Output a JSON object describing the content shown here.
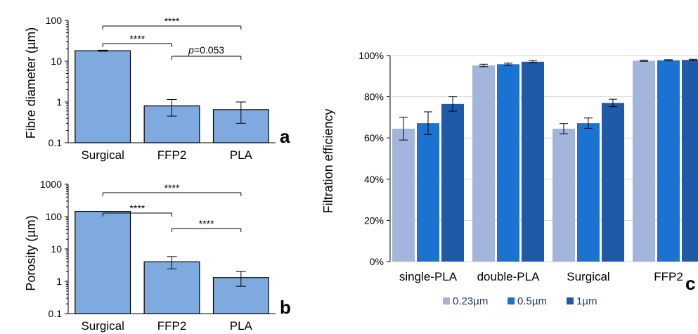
{
  "chart_data": [
    {
      "type": "bar",
      "panel_label": "a",
      "ylabel": "Fibre diameter (µm)",
      "yscale": "log",
      "ylim": [
        0.1,
        100
      ],
      "yticks": [
        "0.1",
        "1",
        "10",
        "100"
      ],
      "categories": [
        "Surgical",
        "FFP2",
        "PLA"
      ],
      "values": [
        18,
        0.8,
        0.65
      ],
      "errors_low": [
        0.5,
        0.35,
        0.35
      ],
      "errors_high": [
        0.6,
        0.35,
        0.35
      ],
      "bar_color": "#7eaadf",
      "significance": [
        {
          "from": 0,
          "to": 2,
          "label": "****"
        },
        {
          "from": 0,
          "to": 1,
          "label": "****"
        },
        {
          "from": 1,
          "to": 2,
          "label": "p=0.053",
          "italic_prefix": "p",
          "rest": "=0.053"
        }
      ]
    },
    {
      "type": "bar",
      "panel_label": "b",
      "ylabel": "Porosity (µm)",
      "yscale": "log",
      "ylim": [
        0.1,
        1000
      ],
      "yticks": [
        "0.1",
        "1",
        "10",
        "100",
        "1000"
      ],
      "categories": [
        "Surgical",
        "FFP2",
        "PLA"
      ],
      "values": [
        145,
        4,
        1.3
      ],
      "errors_low": [
        0,
        1.6,
        0.6
      ],
      "errors_high": [
        0,
        1.8,
        0.7
      ],
      "bar_color": "#7eaadf",
      "significance": [
        {
          "from": 0,
          "to": 2,
          "label": "****"
        },
        {
          "from": 0,
          "to": 1,
          "label": "****"
        },
        {
          "from": 1,
          "to": 2,
          "label": "****"
        }
      ]
    },
    {
      "type": "bar",
      "panel_label": "c",
      "ylabel": "Filtration efficiency",
      "ylim": [
        0,
        100
      ],
      "yticks": [
        "0%",
        "20%",
        "40%",
        "60%",
        "80%",
        "100%"
      ],
      "categories": [
        "single-PLA",
        "double-PLA",
        "Surgical",
        "FFP2"
      ],
      "series": [
        {
          "name": "0.23µm",
          "color": "#a3b5dc",
          "values": [
            64.5,
            95.2,
            64.5,
            97.5
          ],
          "errors": [
            5.5,
            0.6,
            2.5,
            0.3
          ]
        },
        {
          "name": "0.5µm",
          "color": "#1a73d1",
          "values": [
            67.2,
            95.8,
            67.2,
            97.7
          ],
          "errors": [
            5.5,
            0.5,
            2.5,
            0.3
          ]
        },
        {
          "name": "1µm",
          "color": "#1e5aa8",
          "values": [
            76.5,
            97.0,
            77.0,
            97.9
          ],
          "errors": [
            3.5,
            0.5,
            1.8,
            0.3
          ]
        }
      ]
    }
  ]
}
